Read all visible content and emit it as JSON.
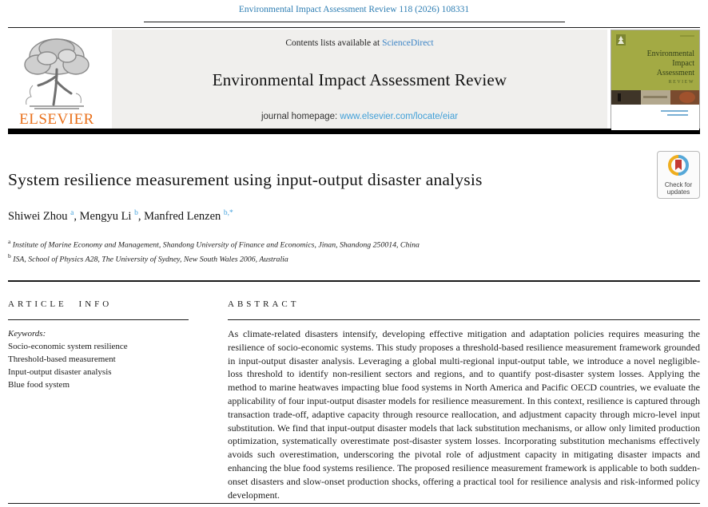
{
  "colors": {
    "link_blue": "#3d85c6",
    "citation_blue": "#2e7eb3",
    "superscript_blue": "#45a2dc",
    "elsevier_orange": "#e9711c",
    "cover_green": "#a3aa44"
  },
  "top": {
    "citation": "Environmental Impact Assessment Review 118 (2026) 108331"
  },
  "header": {
    "contents_prefix": "Contents lists available at ",
    "sciencedirect": "ScienceDirect",
    "journal_title": "Environmental Impact Assessment Review",
    "homepage_label": "journal homepage: ",
    "homepage_url": "www.elsevier.com/locate/eiar",
    "elsevier_wordmark": "ELSEVIER",
    "cover": {
      "title_lines": [
        "Environmental",
        "Impact",
        "Assessment"
      ],
      "subtitle": "REVIEW"
    }
  },
  "article": {
    "title": "System resilience measurement using input-output disaster analysis",
    "authors": [
      {
        "name": "Shiwei Zhou",
        "sup": "a"
      },
      {
        "name": "Mengyu Li",
        "sup": "b"
      },
      {
        "name": "Manfred Lenzen",
        "sup": "b,*"
      }
    ],
    "affiliations": [
      {
        "sup": "a",
        "text": "Institute of Marine Economy and Management, Shandong University of Finance and Economics, Jinan, Shandong 250014, China"
      },
      {
        "sup": "b",
        "text": "ISA, School of Physics A28, The University of Sydney, New South Wales 2006, Australia"
      }
    ],
    "badge_label": "Check for updates"
  },
  "article_info": {
    "heading": "ARTICLE INFO",
    "keywords_label": "Keywords:",
    "keywords": [
      "Socio-economic system resilience",
      "Threshold-based measurement",
      "Input-output disaster analysis",
      "Blue food system"
    ]
  },
  "abstract": {
    "heading": "ABSTRACT",
    "text": "As climate-related disasters intensify, developing effective mitigation and adaptation policies requires measuring the resilience of socio-economic systems. This study proposes a threshold-based resilience measurement framework grounded in input-output disaster analysis. Leveraging a global multi-regional input-output table, we introduce a novel negligible-loss threshold to identify non-resilient sectors and regions, and to quantify post-disaster system losses. Applying the method to marine heatwaves impacting blue food systems in North America and Pacific OECD countries, we evaluate the applicability of four input-output disaster models for resilience measurement. In this context, resilience is captured through transaction trade-off, adaptive capacity through resource reallocation, and adjustment capacity through micro-level input substitution. We find that input-output disaster models that lack substitution mechanisms, or allow only limited production optimization, systematically overestimate post-disaster system losses. Incorporating substitution mechanisms effectively avoids such overestimation, underscoring the pivotal role of adjustment capacity in mitigating disaster impacts and enhancing the blue food systems resilience. The proposed resilience measurement framework is applicable to both sudden-onset disasters and slow-onset production shocks, offering a practical tool for resilience analysis and risk-informed policy development."
  }
}
